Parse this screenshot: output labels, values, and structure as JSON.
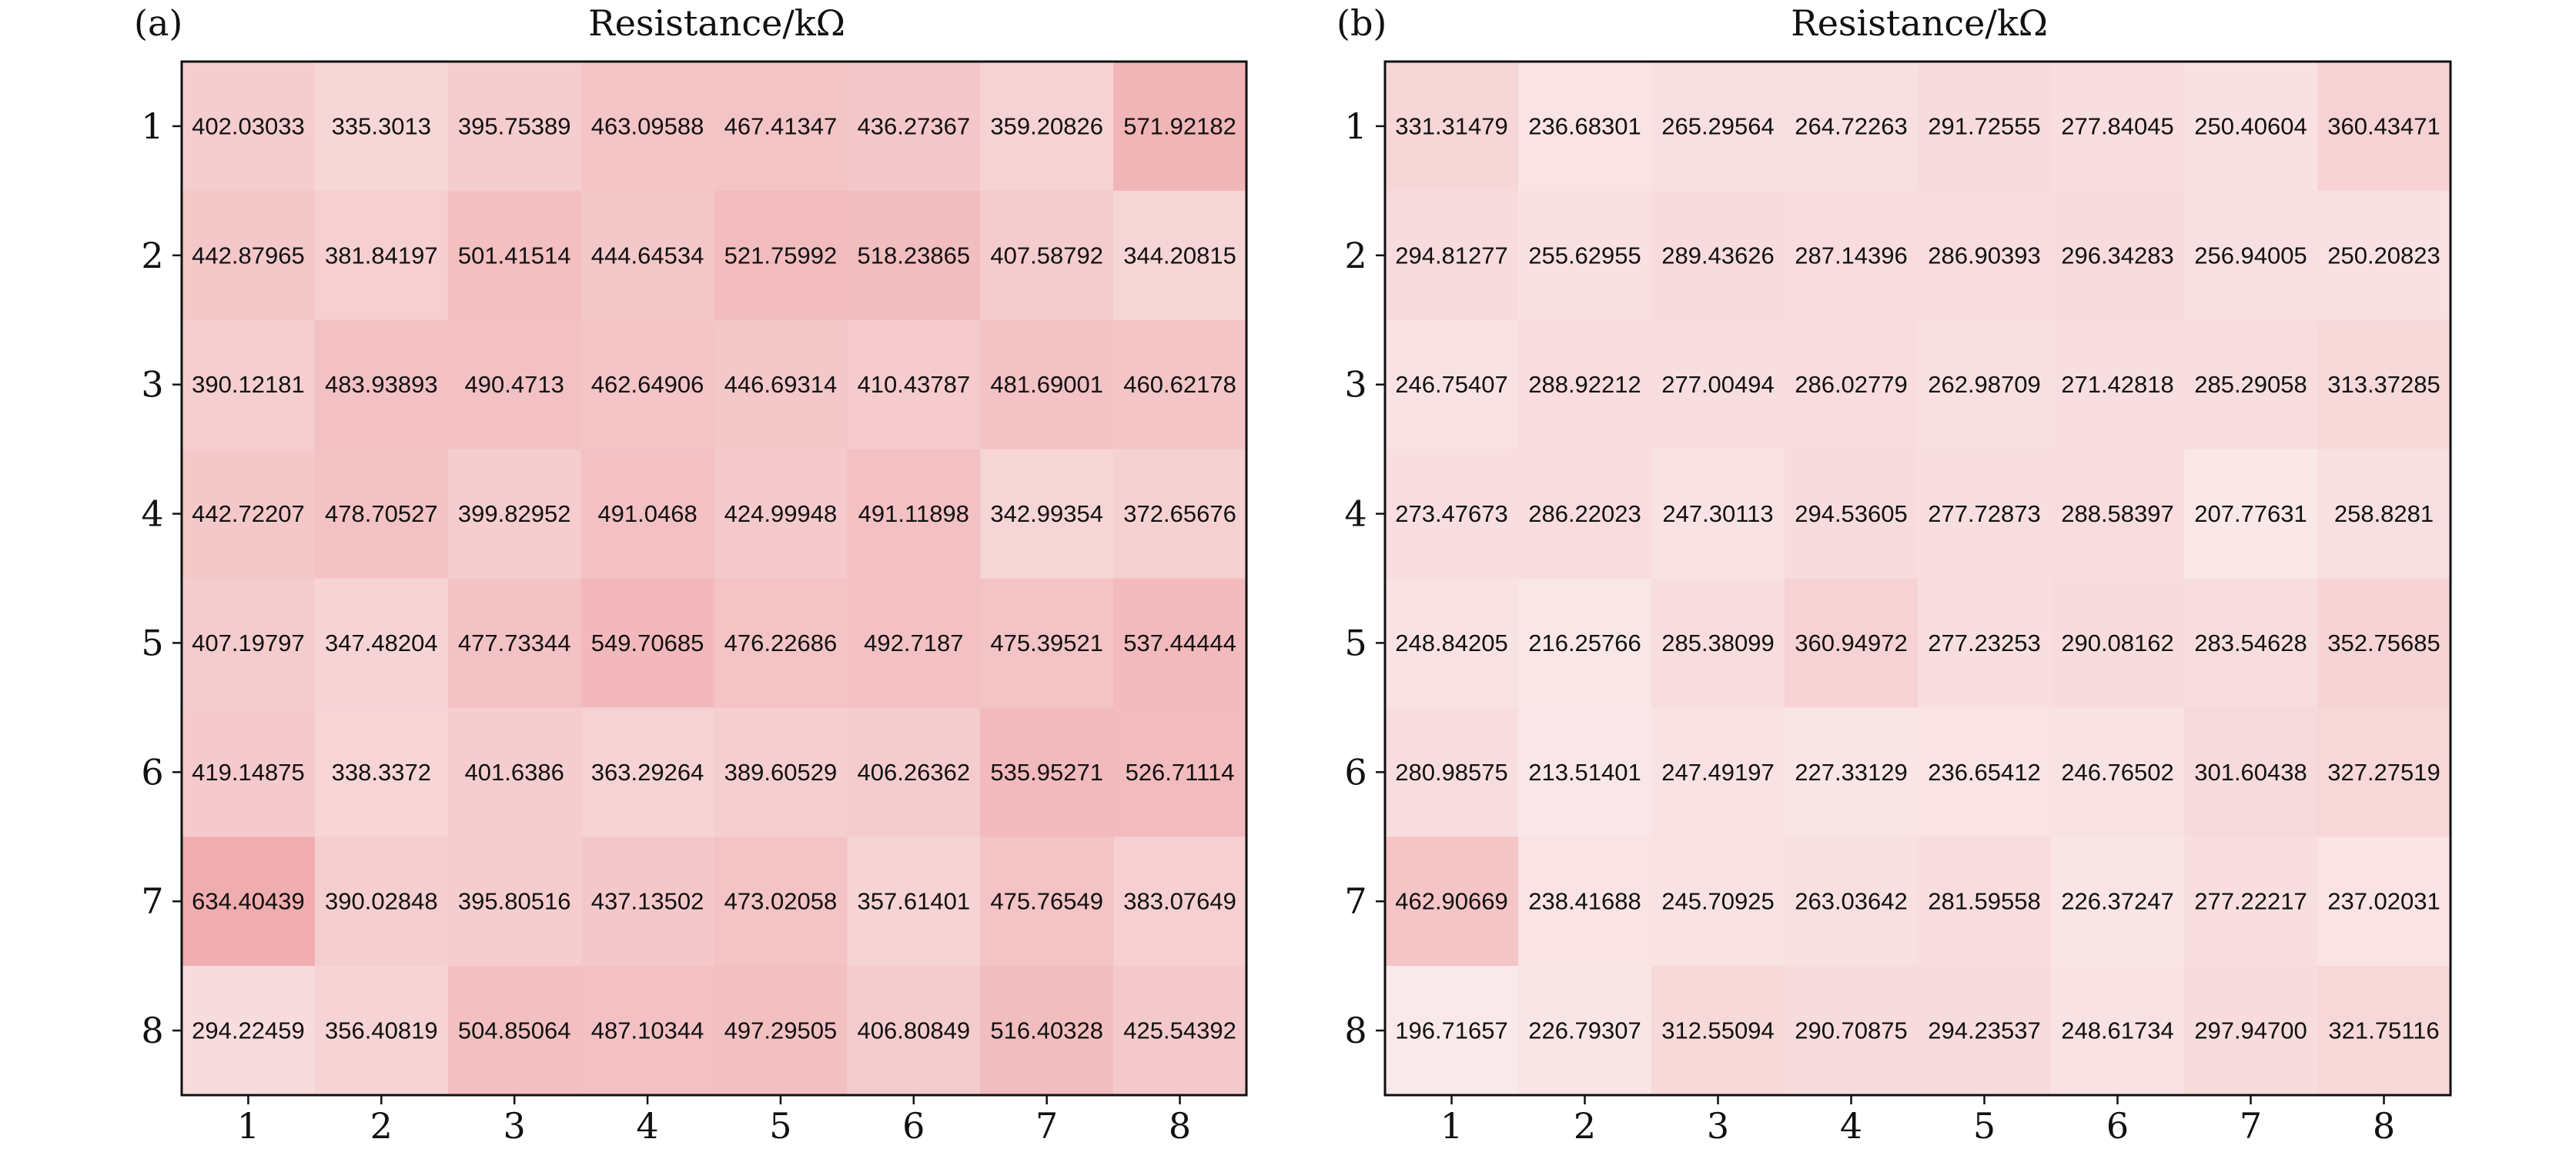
{
  "chart_data": [
    {
      "type": "heatmap",
      "panel_label": "(a)",
      "title": "Resistance/kΩ",
      "rows": [
        "1",
        "2",
        "3",
        "4",
        "5",
        "6",
        "7",
        "8"
      ],
      "cols": [
        "1",
        "2",
        "3",
        "4",
        "5",
        "6",
        "7",
        "8"
      ],
      "values": [
        [
          "402.03033",
          "335.3013",
          "395.75389",
          "463.09588",
          "467.41347",
          "436.27367",
          "359.20826",
          "571.92182"
        ],
        [
          "442.87965",
          "381.84197",
          "501.41514",
          "444.64534",
          "521.75992",
          "518.23865",
          "407.58792",
          "344.20815"
        ],
        [
          "390.12181",
          "483.93893",
          "490.4713",
          "462.64906",
          "446.69314",
          "410.43787",
          "481.69001",
          "460.62178"
        ],
        [
          "442.72207",
          "478.70527",
          "399.82952",
          "491.0468",
          "424.99948",
          "491.11898",
          "342.99354",
          "372.65676"
        ],
        [
          "407.19797",
          "347.48204",
          "477.73344",
          "549.70685",
          "476.22686",
          "492.7187",
          "475.39521",
          "537.44444"
        ],
        [
          "419.14875",
          "338.3372",
          "401.6386",
          "363.29264",
          "389.60529",
          "406.26362",
          "535.95271",
          "526.71114"
        ],
        [
          "634.40439",
          "390.02848",
          "395.80516",
          "437.13502",
          "473.02058",
          "357.61401",
          "475.76549",
          "383.07649"
        ],
        [
          "294.22459",
          "356.40819",
          "504.85064",
          "487.10344",
          "497.29505",
          "406.80849",
          "516.40328",
          "425.54392"
        ]
      ],
      "colorscale": {
        "low": "#fbeff0",
        "high": "#eea4a7",
        "vmin": 150,
        "vmax": 700
      }
    },
    {
      "type": "heatmap",
      "panel_label": "(b)",
      "title": "Resistance/kΩ",
      "rows": [
        "1",
        "2",
        "3",
        "4",
        "5",
        "6",
        "7",
        "8"
      ],
      "cols": [
        "1",
        "2",
        "3",
        "4",
        "5",
        "6",
        "7",
        "8"
      ],
      "values": [
        [
          "331.31479",
          "236.68301",
          "265.29564",
          "264.72263",
          "291.72555",
          "277.84045",
          "250.40604",
          "360.43471"
        ],
        [
          "294.81277",
          "255.62955",
          "289.43626",
          "287.14396",
          "286.90393",
          "296.34283",
          "256.94005",
          "250.20823"
        ],
        [
          "246.75407",
          "288.92212",
          "277.00494",
          "286.02779",
          "262.98709",
          "271.42818",
          "285.29058",
          "313.37285"
        ],
        [
          "273.47673",
          "286.22023",
          "247.30113",
          "294.53605",
          "277.72873",
          "288.58397",
          "207.77631",
          "258.8281"
        ],
        [
          "248.84205",
          "216.25766",
          "285.38099",
          "360.94972",
          "277.23253",
          "290.08162",
          "283.54628",
          "352.75685"
        ],
        [
          "280.98575",
          "213.51401",
          "247.49197",
          "227.33129",
          "236.65412",
          "246.76502",
          "301.60438",
          "327.27519"
        ],
        [
          "462.90669",
          "238.41688",
          "245.70925",
          "263.03642",
          "281.59558",
          "226.37247",
          "277.22217",
          "237.02031"
        ],
        [
          "196.71657",
          "226.79307",
          "312.55094",
          "290.70875",
          "294.23537",
          "248.61734",
          "297.94700",
          "321.75116"
        ]
      ],
      "colorscale": {
        "low": "#fbeff0",
        "high": "#eea4a7",
        "vmin": 150,
        "vmax": 700
      }
    }
  ]
}
